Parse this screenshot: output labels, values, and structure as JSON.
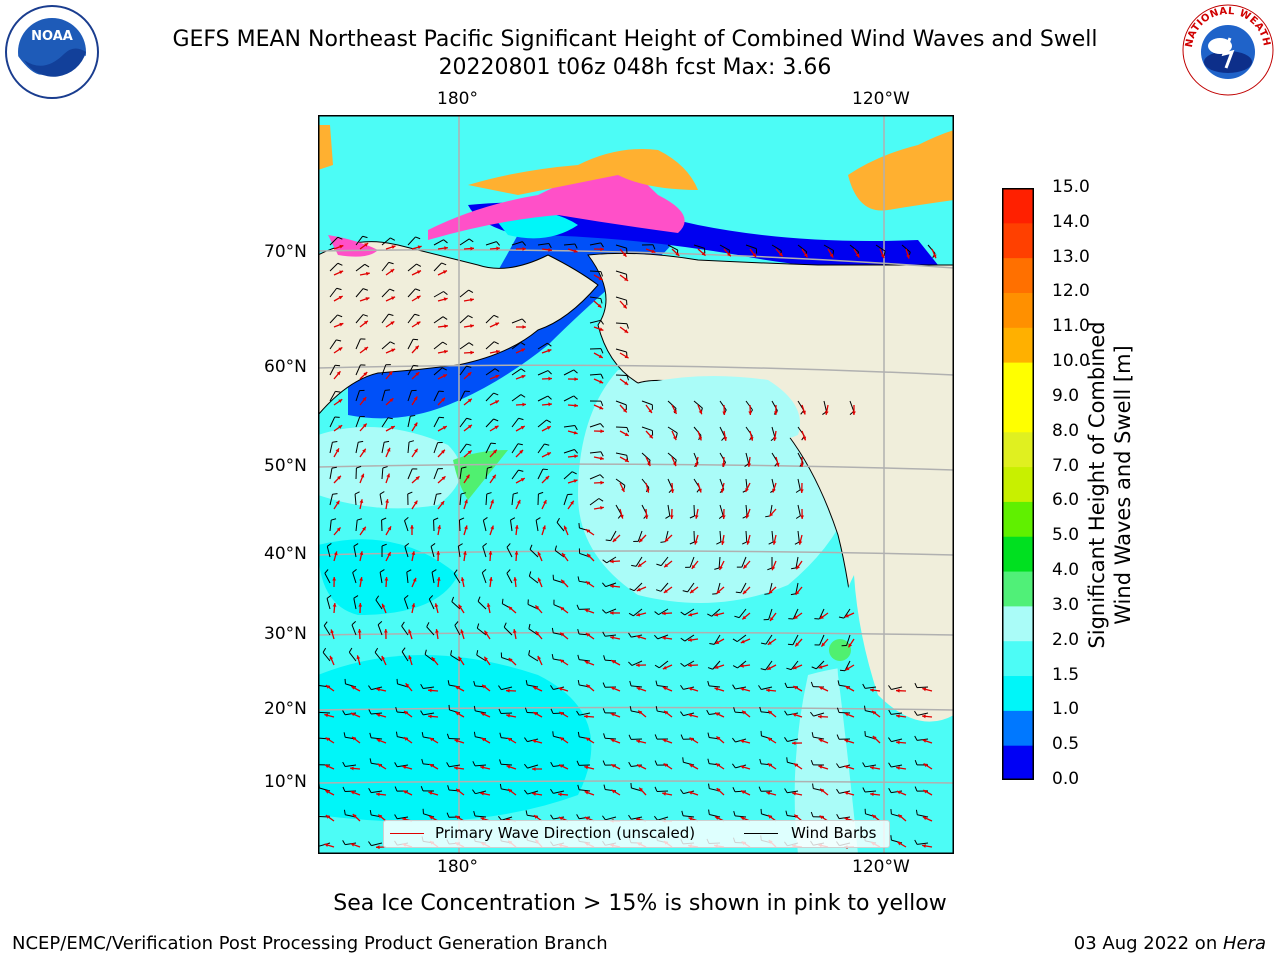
{
  "title_line1": "GEFS MEAN Northeast Pacific Significant Height of Combined Wind Waves and Swell",
  "title_line2": "20220801 t06z 048h fcst   Max: 3.66",
  "logo_left_text": "NOAA",
  "logo_right_text": "NATIONAL WEATHER SERVICE",
  "map": {
    "top_ticks": [
      "180°",
      "120°W"
    ],
    "bottom_ticks": [
      "180°",
      "120°W"
    ],
    "left_ticks": [
      "70°N",
      "60°N",
      "50°N",
      "40°N",
      "30°N",
      "20°N",
      "10°N"
    ],
    "colors": {
      "land": "#f0eedb",
      "ocean_light": "#aafcf8",
      "ocean_cyan": "#4cfcf6",
      "ocean_aqua": "#00f6f9",
      "deep_blue": "#0050f8",
      "blue": "#0000f0",
      "ice_pink": "#ff50c8",
      "ice_orange": "#ffb030",
      "green": "#50f070",
      "wave_arrow": "#e00000",
      "barb": "#000000",
      "grid": "#b0b0b0"
    }
  },
  "legend": {
    "wave_label": "Primary Wave Direction (unscaled)",
    "barb_label": "Wind Barbs"
  },
  "colorbar": {
    "ticks": [
      "15.0",
      "14.0",
      "13.0",
      "12.0",
      "11.0",
      "10.0",
      "9.0",
      "8.0",
      "7.0",
      "6.0",
      "5.0",
      "4.0",
      "3.0",
      "2.0",
      "1.5",
      "1.0",
      "0.5",
      "0.0"
    ],
    "colors": [
      "#0000f5",
      "#0078ff",
      "#00f6f9",
      "#4cfcf6",
      "#aafcf8",
      "#50f078",
      "#00e020",
      "#60f000",
      "#c8f000",
      "#e0f020",
      "#ffff00",
      "#ffff00",
      "#ffb000",
      "#ff9000",
      "#ff7000",
      "#ff4000",
      "#ff2000",
      "#ff0000"
    ],
    "label_line1": "Significant Height of Combined",
    "label_line2": "Wind Waves and Swell [m]"
  },
  "note": "Sea Ice Concentration > 15% is shown in pink to yellow",
  "footer_left": "NCEP/EMC/Verification Post Processing Product Generation Branch",
  "footer_date": "03 Aug 2022 on ",
  "footer_host": "Hera"
}
